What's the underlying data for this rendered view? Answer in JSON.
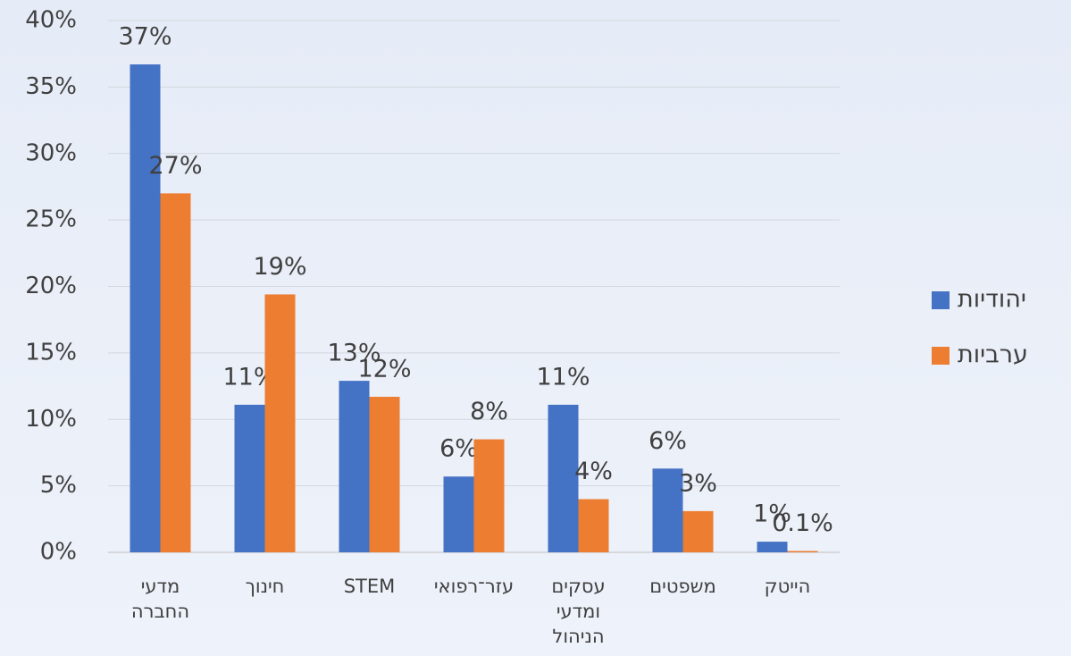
{
  "chart_data": {
    "type": "bar",
    "categories": [
      "מדעי החברה",
      "חינוך",
      "STEM",
      "עזר־רפואי",
      "עסקים ומדעי הניהול",
      "משפטים",
      "הייטק"
    ],
    "series": [
      {
        "name": "יהודיות",
        "color": "#4472c4",
        "values": [
          36.7,
          11.1,
          12.9,
          5.7,
          11.1,
          6.3,
          0.8
        ],
        "value_labels": [
          "37%",
          "11%",
          "13%",
          "6%",
          "11%",
          "6%",
          "1%"
        ]
      },
      {
        "name": "ערביות",
        "color": "#ed7d31",
        "values": [
          27,
          19.4,
          11.7,
          8.5,
          4.0,
          3.1,
          0.1
        ],
        "value_labels": [
          "27%",
          "19%",
          "12%",
          "8%",
          "4%",
          "3%",
          "0.1%"
        ]
      }
    ],
    "ylim": [
      0,
      40
    ],
    "yticks": [
      {
        "value": 0,
        "label": "0%"
      },
      {
        "value": 5,
        "label": "5%"
      },
      {
        "value": 10,
        "label": "10%"
      },
      {
        "value": 15,
        "label": "15%"
      },
      {
        "value": 20,
        "label": "20%"
      },
      {
        "value": 25,
        "label": "25%"
      },
      {
        "value": 30,
        "label": "30%"
      },
      {
        "value": 35,
        "label": "35%"
      },
      {
        "value": 40,
        "label": "40%"
      }
    ],
    "grid": true,
    "legend": "right"
  }
}
